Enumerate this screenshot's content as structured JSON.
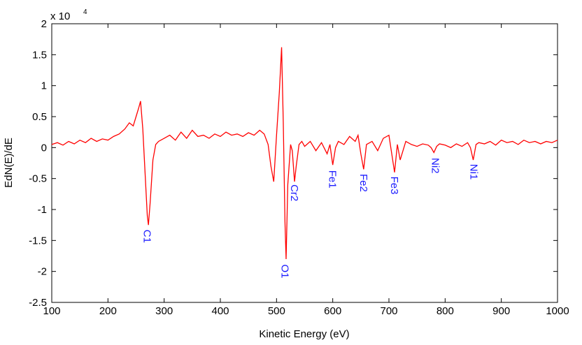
{
  "chart_data": {
    "type": "line",
    "title": "",
    "xlabel": "Kinetic Energy (eV)",
    "ylabel": "EdN(E)/dE",
    "y_exponent_base": "x 10",
    "y_exponent_power": "4",
    "xlim": [
      100,
      1000
    ],
    "ylim": [
      -2.5,
      2
    ],
    "grid": false,
    "xticks": [
      100,
      200,
      300,
      400,
      500,
      600,
      700,
      800,
      900,
      1000
    ],
    "xtick_labels": [
      "100",
      "200",
      "300",
      "400",
      "500",
      "600",
      "700",
      "800",
      "900",
      "1000"
    ],
    "yticks": [
      -2.5,
      -2,
      -1.5,
      -1,
      -0.5,
      0,
      0.5,
      1,
      1.5,
      2
    ],
    "ytick_labels": [
      "-2.5",
      "-2",
      "-1.5",
      "-1",
      "-0.5",
      "0",
      "0.5",
      "1",
      "1.5",
      "2"
    ],
    "line_color": "#ff0000",
    "label_color": "#1a1aff",
    "series": [
      {
        "x": [
          100,
          110,
          120,
          130,
          140,
          150,
          160,
          170,
          180,
          190,
          200,
          210,
          220,
          230,
          238,
          245,
          250,
          255,
          258,
          262,
          266,
          270,
          272,
          275,
          280,
          285,
          290,
          300,
          310,
          320,
          330,
          340,
          350,
          360,
          370,
          380,
          390,
          400,
          410,
          420,
          430,
          440,
          450,
          460,
          470,
          478,
          485,
          490,
          495,
          500,
          505,
          509,
          512,
          515,
          517,
          520,
          525,
          528,
          532,
          535,
          540,
          545,
          550,
          560,
          570,
          580,
          590,
          595,
          600,
          605,
          610,
          620,
          630,
          640,
          645,
          650,
          655,
          660,
          670,
          680,
          690,
          700,
          705,
          710,
          715,
          720,
          730,
          740,
          750,
          760,
          770,
          775,
          780,
          785,
          790,
          800,
          810,
          820,
          830,
          840,
          845,
          850,
          855,
          860,
          870,
          880,
          890,
          900,
          910,
          920,
          930,
          940,
          950,
          960,
          970,
          980,
          990,
          1000
        ],
        "y": [
          0.05,
          0.08,
          0.04,
          0.1,
          0.06,
          0.12,
          0.08,
          0.15,
          0.1,
          0.14,
          0.12,
          0.18,
          0.22,
          0.3,
          0.4,
          0.35,
          0.5,
          0.65,
          0.75,
          0.3,
          -0.4,
          -1.1,
          -1.25,
          -0.9,
          -0.2,
          0.05,
          0.1,
          0.15,
          0.2,
          0.12,
          0.25,
          0.15,
          0.28,
          0.18,
          0.2,
          0.15,
          0.22,
          0.18,
          0.25,
          0.2,
          0.22,
          0.18,
          0.24,
          0.2,
          0.28,
          0.22,
          0.05,
          -0.3,
          -0.55,
          0.2,
          0.9,
          1.62,
          0.4,
          -1.2,
          -1.8,
          -0.6,
          0.05,
          -0.05,
          -0.55,
          -0.3,
          0.05,
          0.1,
          0.02,
          0.1,
          -0.05,
          0.08,
          -0.1,
          0.05,
          -0.28,
          0.0,
          0.1,
          0.05,
          0.18,
          0.1,
          0.2,
          -0.1,
          -0.35,
          0.05,
          0.1,
          -0.05,
          0.15,
          0.2,
          -0.1,
          -0.4,
          0.05,
          -0.2,
          0.1,
          0.05,
          0.02,
          0.06,
          0.04,
          0.0,
          -0.08,
          0.02,
          0.06,
          0.04,
          0.0,
          0.06,
          0.02,
          0.08,
          0.0,
          -0.2,
          0.05,
          0.08,
          0.06,
          0.1,
          0.04,
          0.12,
          0.08,
          0.1,
          0.05,
          0.12,
          0.08,
          0.1,
          0.06,
          0.1,
          0.08,
          0.12
        ]
      }
    ],
    "annotations": [
      {
        "text": "C1",
        "x": 270,
        "y": -1.28,
        "rotation": 90
      },
      {
        "text": "O1",
        "x": 515,
        "y": -1.84,
        "rotation": 90
      },
      {
        "text": "Cr2",
        "x": 532,
        "y": -0.55,
        "rotation": 90
      },
      {
        "text": "Fe1",
        "x": 600,
        "y": -0.32,
        "rotation": 90
      },
      {
        "text": "Fe2",
        "x": 655,
        "y": -0.38,
        "rotation": 90
      },
      {
        "text": "Fe3",
        "x": 710,
        "y": -0.42,
        "rotation": 90
      },
      {
        "text": "Ni2",
        "x": 783,
        "y": -0.12,
        "rotation": 90
      },
      {
        "text": "Ni1",
        "x": 851,
        "y": -0.22,
        "rotation": 90
      }
    ]
  }
}
